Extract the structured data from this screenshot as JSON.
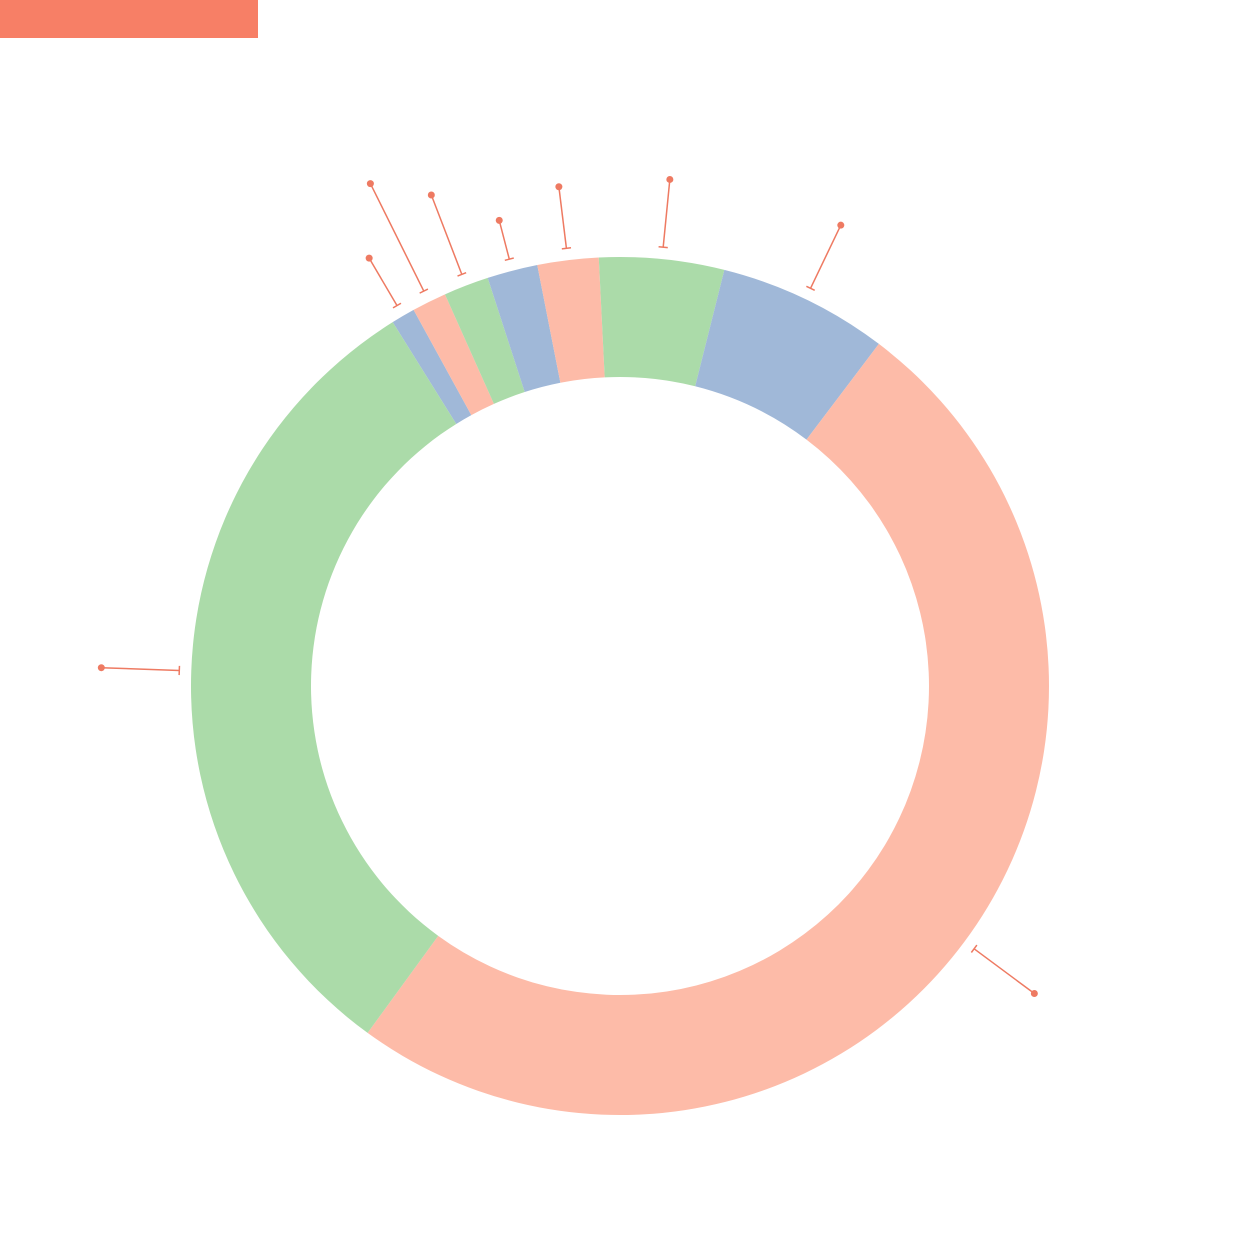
{
  "chart_data": {
    "type": "donut",
    "values": [
      0.9,
      1.3,
      1.7,
      1.9,
      2.3,
      4.7,
      6.4,
      49.7,
      31.1
    ],
    "colors": [
      "#a0b8d8",
      "#fdbba8",
      "#abdba9",
      "#a0b8d8",
      "#fdbba8",
      "#abdba9",
      "#a0b8d8",
      "#fdbba8",
      "#abdba9"
    ]
  }
}
